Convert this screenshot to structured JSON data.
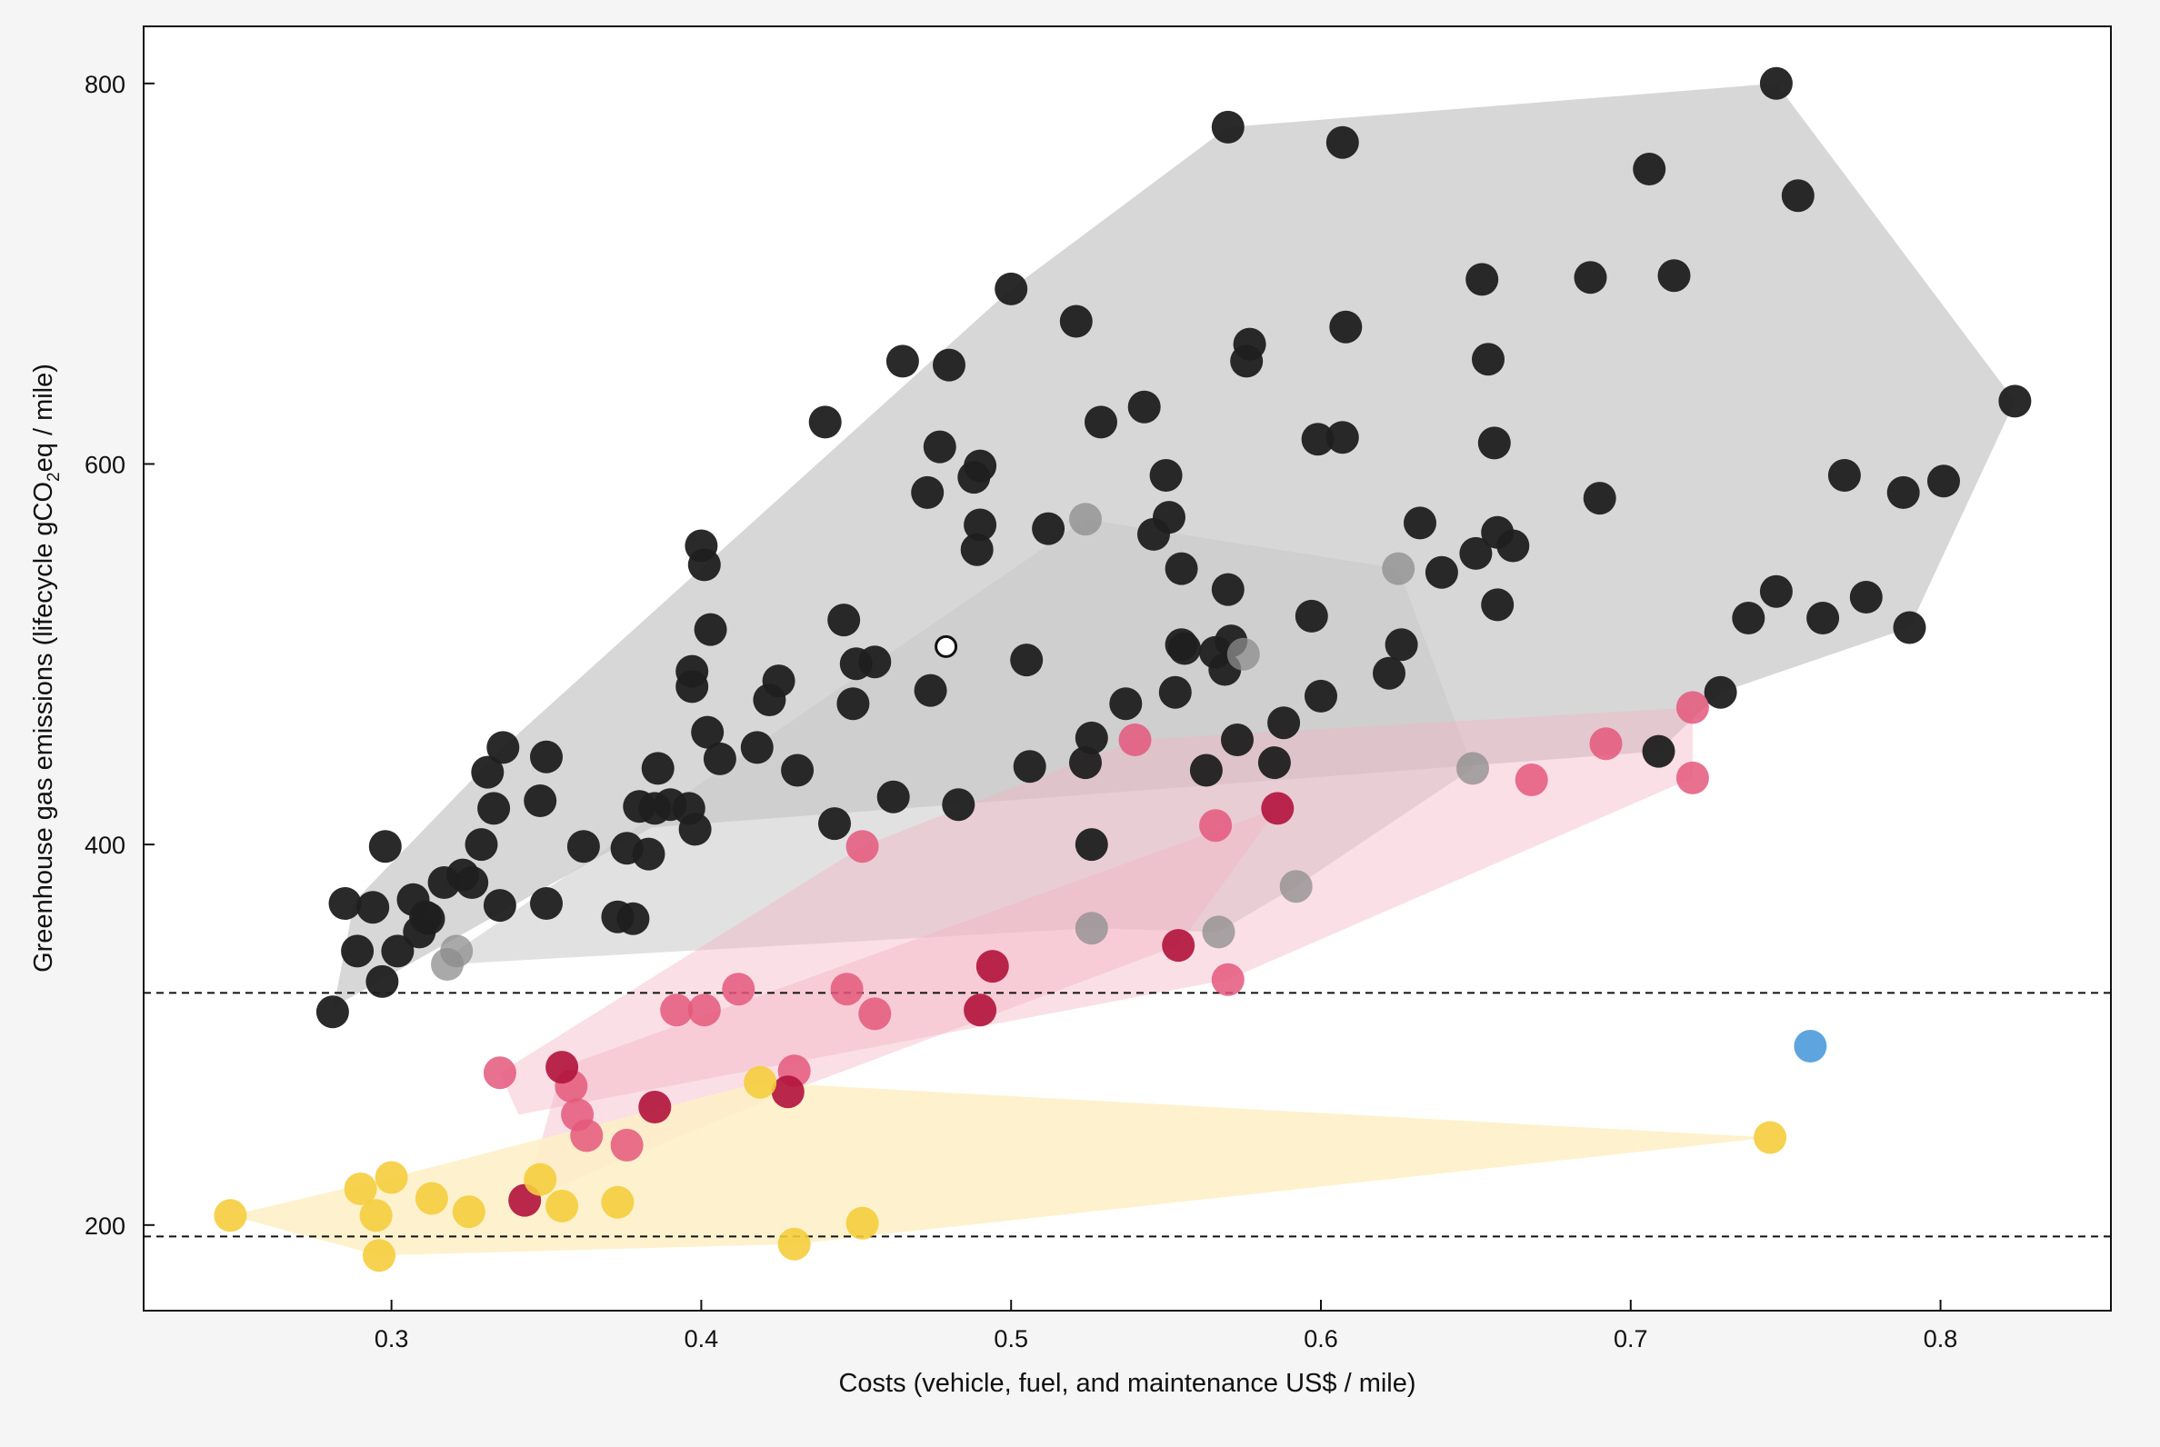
{
  "chart_data": {
    "type": "scatter",
    "xlabel": "Costs (vehicle, fuel, and maintenance US$ / mile)",
    "ylabel_parts": [
      "Greenhouse gas emissions (lifecycle gCO",
      "2",
      "eq / mile)"
    ],
    "xlim": [
      0.22,
      0.855
    ],
    "ylim": [
      155,
      830
    ],
    "xticks": [
      0.3,
      0.4,
      0.5,
      0.6,
      0.7,
      0.8
    ],
    "xtick_labels": [
      "0.3",
      "0.4",
      "0.5",
      "0.6",
      "0.7",
      "0.8"
    ],
    "yticks": [
      200,
      400,
      600,
      800
    ],
    "ytick_labels": [
      "200",
      "400",
      "600",
      "800"
    ],
    "reference_lines": [
      322,
      194
    ],
    "grid": false,
    "colors": {
      "black": "#1f1f1f",
      "gray": "#8c8c8c",
      "pink": "#e4587b",
      "crimson": "#b3163f",
      "yellow": "#f5cd3d",
      "blue": "#5ea5e0",
      "hull_black": "#d7d7d7",
      "hull_gray": "#c8c8c8",
      "hull_pink": "#f4b3c4",
      "hull_yellow": "#fdf0c4"
    },
    "hulls": [
      {
        "name": "black",
        "color": "hull_black",
        "opacity": 1.0,
        "points": [
          [
            0.281,
            312
          ],
          [
            0.288,
            370
          ],
          [
            0.336,
            451
          ],
          [
            0.5,
            692
          ],
          [
            0.57,
            777
          ],
          [
            0.747,
            800
          ],
          [
            0.824,
            633
          ],
          [
            0.79,
            514
          ],
          [
            0.729,
            480
          ],
          [
            0.709,
            449
          ],
          [
            0.384,
            409
          ],
          [
            0.285,
            318
          ]
        ]
      },
      {
        "name": "gray",
        "color": "hull_gray",
        "opacity": 0.55,
        "points": [
          [
            0.318,
            337
          ],
          [
            0.321,
            344
          ],
          [
            0.524,
            571
          ],
          [
            0.625,
            545
          ],
          [
            0.649,
            440
          ],
          [
            0.592,
            378
          ],
          [
            0.567,
            354
          ],
          [
            0.526,
            356
          ]
        ]
      },
      {
        "name": "pink",
        "color": "hull_pink",
        "opacity": 0.42,
        "points": [
          [
            0.335,
            280
          ],
          [
            0.452,
            399
          ],
          [
            0.54,
            455
          ],
          [
            0.72,
            472
          ],
          [
            0.72,
            435
          ],
          [
            0.57,
            329
          ],
          [
            0.341,
            258
          ]
        ]
      },
      {
        "name": "crimson",
        "color": "hull_pink",
        "opacity": 0.42,
        "points": [
          [
            0.343,
            213
          ],
          [
            0.355,
            283
          ],
          [
            0.586,
            419
          ],
          [
            0.554,
            347
          ],
          [
            0.428,
            270
          ]
        ]
      },
      {
        "name": "yellow",
        "color": "hull_yellow",
        "opacity": 0.85,
        "points": [
          [
            0.248,
            205
          ],
          [
            0.3,
            225
          ],
          [
            0.419,
            275
          ],
          [
            0.745,
            246
          ],
          [
            0.43,
            190
          ],
          [
            0.296,
            184
          ]
        ]
      }
    ],
    "series": [
      {
        "name": "black",
        "color": "black",
        "opacity": 0.95,
        "points": [
          [
            0.281,
            312
          ],
          [
            0.285,
            369
          ],
          [
            0.289,
            344
          ],
          [
            0.294,
            367
          ],
          [
            0.297,
            328
          ],
          [
            0.298,
            399
          ],
          [
            0.302,
            344
          ],
          [
            0.307,
            371
          ],
          [
            0.309,
            354
          ],
          [
            0.311,
            362
          ],
          [
            0.312,
            361
          ],
          [
            0.317,
            380
          ],
          [
            0.323,
            384
          ],
          [
            0.326,
            380
          ],
          [
            0.329,
            400
          ],
          [
            0.331,
            438
          ],
          [
            0.333,
            419
          ],
          [
            0.335,
            368
          ],
          [
            0.336,
            451
          ],
          [
            0.348,
            423
          ],
          [
            0.35,
            369
          ],
          [
            0.35,
            446
          ],
          [
            0.362,
            399
          ],
          [
            0.373,
            362
          ],
          [
            0.376,
            398
          ],
          [
            0.378,
            361
          ],
          [
            0.38,
            420
          ],
          [
            0.383,
            395
          ],
          [
            0.385,
            419
          ],
          [
            0.386,
            440
          ],
          [
            0.39,
            421
          ],
          [
            0.396,
            419
          ],
          [
            0.397,
            483
          ],
          [
            0.397,
            491
          ],
          [
            0.398,
            408
          ],
          [
            0.4,
            557
          ],
          [
            0.401,
            547
          ],
          [
            0.402,
            459
          ],
          [
            0.403,
            513
          ],
          [
            0.406,
            445
          ],
          [
            0.418,
            451
          ],
          [
            0.422,
            476
          ],
          [
            0.425,
            486
          ],
          [
            0.431,
            439
          ],
          [
            0.44,
            622
          ],
          [
            0.443,
            411
          ],
          [
            0.446,
            518
          ],
          [
            0.449,
            474
          ],
          [
            0.45,
            495
          ],
          [
            0.456,
            496
          ],
          [
            0.462,
            425
          ],
          [
            0.465,
            654
          ],
          [
            0.473,
            585
          ],
          [
            0.474,
            481
          ],
          [
            0.477,
            609
          ],
          [
            0.48,
            652
          ],
          [
            0.483,
            421
          ],
          [
            0.488,
            593
          ],
          [
            0.49,
            599
          ],
          [
            0.489,
            555
          ],
          [
            0.49,
            568
          ],
          [
            0.5,
            692
          ],
          [
            0.505,
            497
          ],
          [
            0.506,
            441
          ],
          [
            0.512,
            566
          ],
          [
            0.521,
            675
          ],
          [
            0.524,
            443
          ],
          [
            0.526,
            400
          ],
          [
            0.526,
            456
          ],
          [
            0.529,
            622
          ],
          [
            0.537,
            474
          ],
          [
            0.543,
            630
          ],
          [
            0.546,
            563
          ],
          [
            0.55,
            594
          ],
          [
            0.551,
            572
          ],
          [
            0.553,
            480
          ],
          [
            0.555,
            505
          ],
          [
            0.555,
            545
          ],
          [
            0.556,
            503
          ],
          [
            0.563,
            439
          ],
          [
            0.566,
            501
          ],
          [
            0.569,
            492
          ],
          [
            0.57,
            777
          ],
          [
            0.57,
            534
          ],
          [
            0.571,
            507
          ],
          [
            0.573,
            455
          ],
          [
            0.576,
            654
          ],
          [
            0.577,
            663
          ],
          [
            0.585,
            443
          ],
          [
            0.588,
            464
          ],
          [
            0.597,
            520
          ],
          [
            0.599,
            613
          ],
          [
            0.6,
            478
          ],
          [
            0.607,
            769
          ],
          [
            0.607,
            614
          ],
          [
            0.608,
            672
          ],
          [
            0.622,
            490
          ],
          [
            0.626,
            505
          ],
          [
            0.632,
            569
          ],
          [
            0.639,
            543
          ],
          [
            0.65,
            553
          ],
          [
            0.652,
            697
          ],
          [
            0.654,
            655
          ],
          [
            0.656,
            611
          ],
          [
            0.657,
            564
          ],
          [
            0.657,
            526
          ],
          [
            0.662,
            557
          ],
          [
            0.687,
            698
          ],
          [
            0.69,
            582
          ],
          [
            0.706,
            755
          ],
          [
            0.709,
            449
          ],
          [
            0.714,
            699
          ],
          [
            0.729,
            480
          ],
          [
            0.738,
            519
          ],
          [
            0.747,
            800
          ],
          [
            0.747,
            533
          ],
          [
            0.754,
            741
          ],
          [
            0.762,
            519
          ],
          [
            0.769,
            594
          ],
          [
            0.776,
            530
          ],
          [
            0.788,
            585
          ],
          [
            0.79,
            514
          ],
          [
            0.801,
            591
          ],
          [
            0.824,
            633
          ]
        ]
      },
      {
        "name": "gray",
        "color": "gray",
        "opacity": 0.75,
        "points": [
          [
            0.318,
            337
          ],
          [
            0.321,
            344
          ],
          [
            0.524,
            571
          ],
          [
            0.526,
            356
          ],
          [
            0.567,
            354
          ],
          [
            0.575,
            500
          ],
          [
            0.592,
            378
          ],
          [
            0.625,
            545
          ],
          [
            0.649,
            440
          ]
        ]
      },
      {
        "name": "white",
        "color": "white",
        "opacity": 1.0,
        "points": [
          [
            0.479,
            504
          ]
        ],
        "small": true
      },
      {
        "name": "pink",
        "color": "pink",
        "opacity": 0.85,
        "points": [
          [
            0.335,
            280
          ],
          [
            0.358,
            273
          ],
          [
            0.36,
            258
          ],
          [
            0.363,
            247
          ],
          [
            0.376,
            242
          ],
          [
            0.392,
            313
          ],
          [
            0.401,
            313
          ],
          [
            0.412,
            324
          ],
          [
            0.43,
            281
          ],
          [
            0.447,
            324
          ],
          [
            0.452,
            399
          ],
          [
            0.456,
            311
          ],
          [
            0.54,
            455
          ],
          [
            0.566,
            410
          ],
          [
            0.57,
            329
          ],
          [
            0.668,
            434
          ],
          [
            0.692,
            453
          ],
          [
            0.72,
            472
          ],
          [
            0.72,
            435
          ]
        ]
      },
      {
        "name": "crimson",
        "color": "crimson",
        "opacity": 0.92,
        "points": [
          [
            0.343,
            213
          ],
          [
            0.355,
            283
          ],
          [
            0.385,
            262
          ],
          [
            0.428,
            270
          ],
          [
            0.49,
            313
          ],
          [
            0.494,
            336
          ],
          [
            0.554,
            347
          ],
          [
            0.586,
            419
          ]
        ]
      },
      {
        "name": "yellow",
        "color": "yellow",
        "opacity": 0.9,
        "points": [
          [
            0.248,
            205
          ],
          [
            0.29,
            219
          ],
          [
            0.295,
            205
          ],
          [
            0.296,
            184
          ],
          [
            0.3,
            225
          ],
          [
            0.313,
            214
          ],
          [
            0.325,
            207
          ],
          [
            0.348,
            224
          ],
          [
            0.355,
            210
          ],
          [
            0.373,
            212
          ],
          [
            0.419,
            275
          ],
          [
            0.43,
            190
          ],
          [
            0.452,
            201
          ],
          [
            0.745,
            246
          ]
        ]
      },
      {
        "name": "blue",
        "color": "blue",
        "opacity": 1.0,
        "points": [
          [
            0.758,
            294
          ]
        ]
      }
    ]
  }
}
